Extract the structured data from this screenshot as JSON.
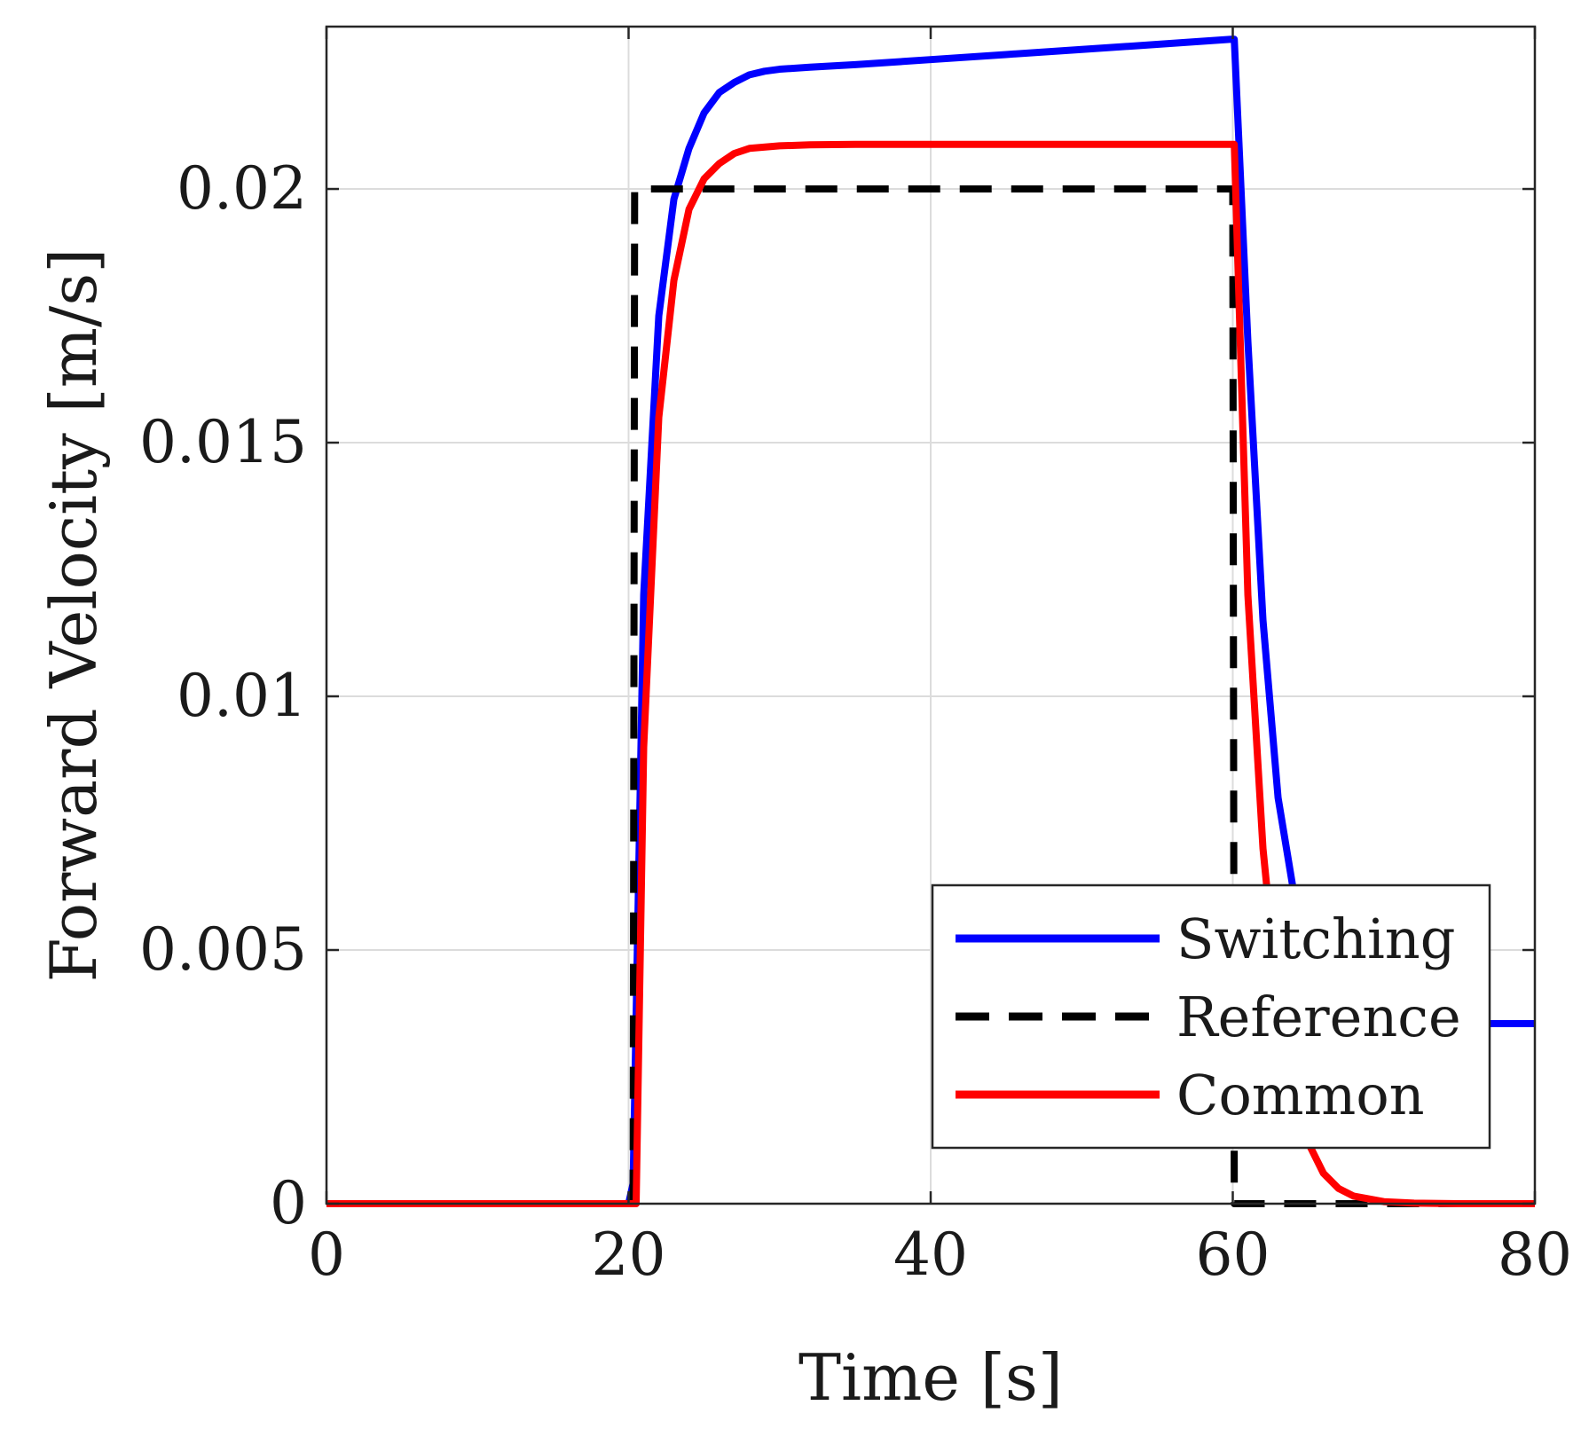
{
  "chart_data": {
    "type": "line",
    "title": "",
    "xlabel": "Time [s]",
    "ylabel": "Forward Velocity [m/s]",
    "xlim": [
      0,
      80
    ],
    "ylim": [
      0,
      0.0232
    ],
    "xticks": [
      0,
      20,
      40,
      60,
      80
    ],
    "xtick_labels": [
      "0",
      "20",
      "40",
      "60",
      "80"
    ],
    "yticks": [
      0,
      0.005,
      0.01,
      0.015,
      0.02
    ],
    "ytick_labels": [
      "0",
      "0.005",
      "0.01",
      "0.015",
      "0.02"
    ],
    "grid": true,
    "legend_position": "bottom-right",
    "series": [
      {
        "name": "Switching",
        "color": "#0000ff",
        "style": "solid",
        "x": [
          0,
          20,
          20.3,
          21,
          22,
          23,
          24,
          25,
          26,
          27,
          28,
          29,
          30,
          32,
          35,
          40,
          45,
          50,
          55,
          59.9,
          60.1,
          61,
          62,
          63,
          64,
          65,
          66,
          67,
          68,
          70,
          74,
          80
        ],
        "y": [
          0,
          0,
          0.0004,
          0.012,
          0.0175,
          0.0198,
          0.0208,
          0.0215,
          0.0219,
          0.0221,
          0.02225,
          0.02232,
          0.02236,
          0.0224,
          0.02245,
          0.02255,
          0.02265,
          0.02275,
          0.02285,
          0.02295,
          0.02295,
          0.017,
          0.0115,
          0.008,
          0.0062,
          0.0052,
          0.0045,
          0.0041,
          0.0038,
          0.0036,
          0.00355,
          0.00355
        ]
      },
      {
        "name": "Reference",
        "color": "#000000",
        "style": "dashed",
        "x": [
          0,
          20.3,
          20.4,
          60,
          60.1,
          80
        ],
        "y": [
          0,
          0,
          0.02,
          0.02,
          0,
          0
        ]
      },
      {
        "name": "Common",
        "color": "#ff0000",
        "style": "solid",
        "x": [
          0,
          20.5,
          21,
          22,
          23,
          24,
          25,
          26,
          27,
          28,
          30,
          32,
          35,
          40,
          50,
          59.9,
          60.1,
          61,
          62,
          63,
          64,
          65,
          66,
          67,
          68,
          70,
          72,
          75,
          80
        ],
        "y": [
          0,
          0,
          0.009,
          0.0155,
          0.0182,
          0.0196,
          0.0202,
          0.0205,
          0.0207,
          0.0208,
          0.02085,
          0.02087,
          0.02088,
          0.02088,
          0.02088,
          0.02088,
          0.02088,
          0.012,
          0.007,
          0.004,
          0.0022,
          0.0012,
          0.0006,
          0.0003,
          0.00015,
          4e-05,
          1e-05,
          0,
          0
        ]
      }
    ]
  }
}
